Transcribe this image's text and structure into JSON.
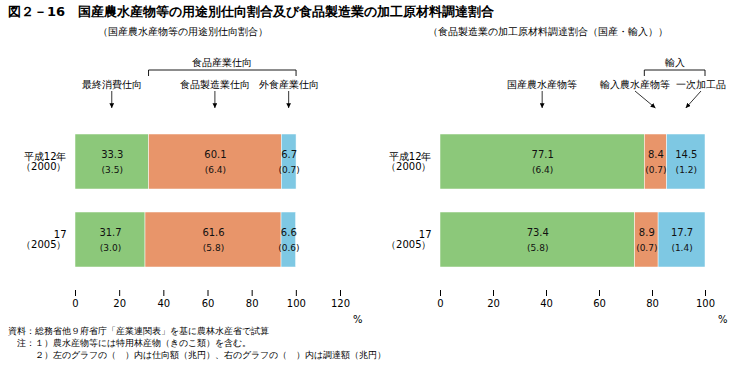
{
  "title": "図２－16　国産農水産物等の用途別仕向割合及び食品製造業の加工原材料調達割合",
  "chart_data": [
    {
      "type": "bar",
      "orientation": "horizontal",
      "stacked": true,
      "data_labels": true,
      "grid": false,
      "subtitle": "（国産農水産物等の用途別仕向割合）",
      "categories": [
        "平成12年\n（2000）",
        "17\n（2005）"
      ],
      "series": [
        {
          "name": "最終消費仕向",
          "color": "#8cc87a",
          "values": [
            33.3,
            31.7
          ],
          "amounts": [
            3.5,
            3.0
          ],
          "amount_labels": [
            "(3.5)",
            "(3.0)"
          ]
        },
        {
          "name": "食品製造業仕向",
          "color": "#e8956a",
          "values": [
            60.1,
            61.6
          ],
          "amounts": [
            6.4,
            5.8
          ],
          "amount_labels": [
            "(6.4)",
            "(5.8)"
          ]
        },
        {
          "name": "外食産業仕向",
          "color": "#7ec8e3",
          "values": [
            6.7,
            6.6
          ],
          "amounts": [
            0.7,
            0.6
          ],
          "amount_labels": [
            "(0.7)",
            "(0.6)"
          ]
        }
      ],
      "xlim": [
        0,
        120
      ],
      "xticks": [
        0,
        20,
        40,
        60,
        80,
        100,
        120
      ],
      "xlabel": "%",
      "brackets": [
        {
          "label": "食品産業仕向",
          "series": [
            "食品製造業仕向",
            "外食産業仕向"
          ]
        }
      ]
    },
    {
      "type": "bar",
      "orientation": "horizontal",
      "stacked": true,
      "data_labels": true,
      "grid": false,
      "subtitle": "（食品製造業の加工原材料調達割合（国産・輸入））",
      "categories": [
        "平成12年\n（2000）",
        "17\n（2005）"
      ],
      "series": [
        {
          "name": "国産農水産物等",
          "color": "#8cc87a",
          "values": [
            77.1,
            73.4
          ],
          "amounts": [
            6.4,
            5.8
          ],
          "amount_labels": [
            "(6.4)",
            "(5.8)"
          ]
        },
        {
          "name": "輸入農水産物等",
          "color": "#e8956a",
          "values": [
            8.4,
            8.9
          ],
          "amounts": [
            0.7,
            0.7
          ],
          "amount_labels": [
            "(0.7)",
            "(0.7)"
          ]
        },
        {
          "name": "一次加工品",
          "color": "#7ec8e3",
          "values": [
            14.5,
            17.7
          ],
          "amounts": [
            1.2,
            1.4
          ],
          "amount_labels": [
            "(1.2)",
            "(1.4)"
          ]
        }
      ],
      "xlim": [
        0,
        100
      ],
      "xticks": [
        0,
        20,
        40,
        60,
        80,
        100
      ],
      "xlabel": "%",
      "brackets": [
        {
          "label": "輸入",
          "series": [
            "輸入農水産物等",
            "一次加工品"
          ]
        }
      ]
    }
  ],
  "notes": [
    "資料：総務省他９府省庁「産業連関表」を基に農林水産省で試算",
    "　注：１）農水産物等には特用林産物（きのこ類）を含む。",
    "　　　２）左のグラフの（　）内は仕向額（兆円）、右のグラフの（　）内は調達額（兆円）"
  ]
}
